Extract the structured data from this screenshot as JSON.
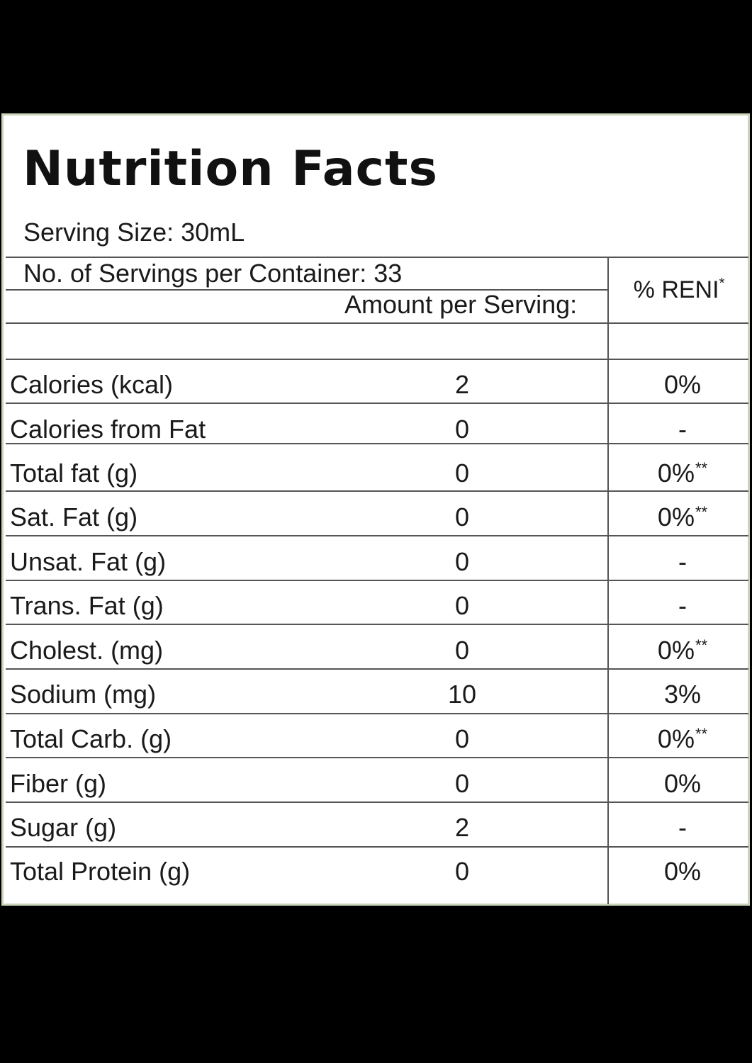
{
  "title": "Nutrition Facts",
  "serving_size": "Serving Size: 30mL",
  "servings_per_container": "No. of Servings per Container: 33",
  "amount_header": "Amount per Serving:",
  "reni_header": "% RENI",
  "reni_mark": "*",
  "rows": [
    {
      "name": "Calories (kcal)",
      "amount": "2",
      "pct": "0%",
      "mark": ""
    },
    {
      "name": "Calories from Fat",
      "amount": "0",
      "pct": "-",
      "mark": ""
    },
    {
      "name": "Total fat (g)",
      "amount": "0",
      "pct": "0%",
      "mark": "**"
    },
    {
      "name": "Sat. Fat (g)",
      "amount": "0",
      "pct": "0%",
      "mark": "**"
    },
    {
      "name": "Unsat. Fat (g)",
      "amount": "0",
      "pct": "-",
      "mark": ""
    },
    {
      "name": "Trans. Fat (g)",
      "amount": "0",
      "pct": "-",
      "mark": ""
    },
    {
      "name": "Cholest. (mg)",
      "amount": "0",
      "pct": "0%",
      "mark": "**"
    },
    {
      "name": "Sodium (mg)",
      "amount": "10",
      "pct": "3%",
      "mark": ""
    },
    {
      "name": "Total Carb. (g)",
      "amount": "0",
      "pct": "0%",
      "mark": "**"
    },
    {
      "name": "Fiber (g)",
      "amount": "0",
      "pct": "0%",
      "mark": ""
    },
    {
      "name": "Sugar (g)",
      "amount": "2",
      "pct": "-",
      "mark": ""
    },
    {
      "name": "Total Protein (g)",
      "amount": "0",
      "pct": "0%",
      "mark": ""
    }
  ]
}
